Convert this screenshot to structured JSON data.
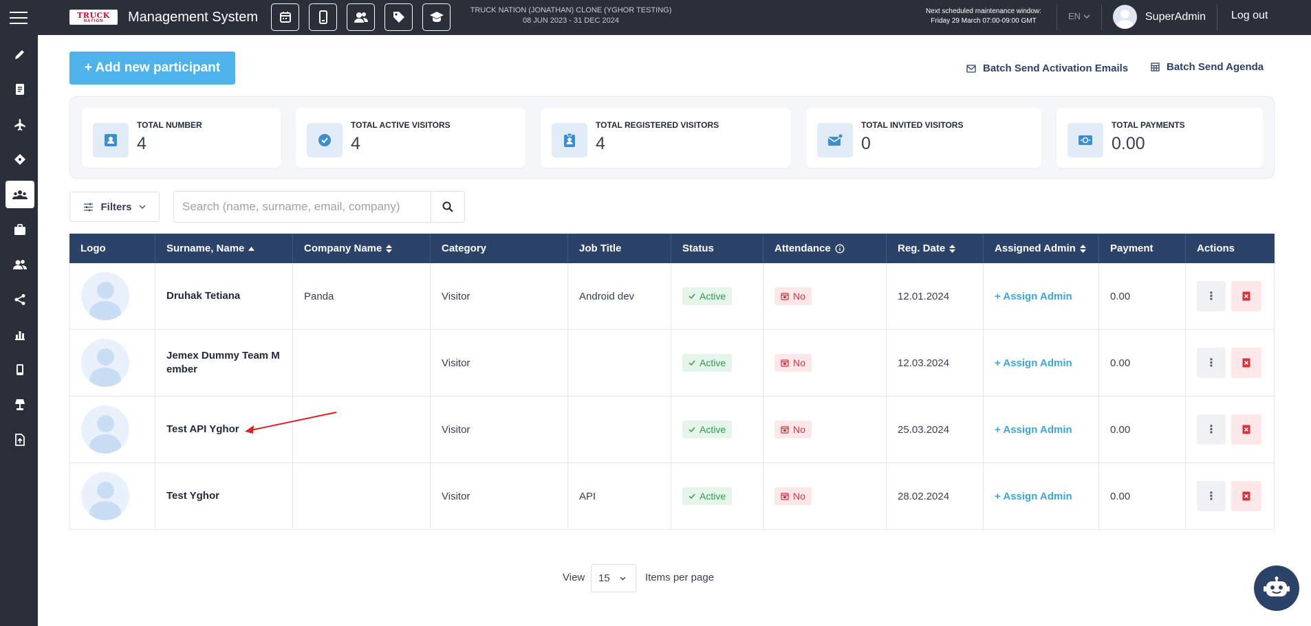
{
  "header": {
    "logo_line1": "TRUCK",
    "logo_line2": "NATION",
    "app_title": "Management System",
    "event_name": "TRUCK NATION (JONATHAN) CLONE (YGHOR TESTING)",
    "event_dates": "08 JUN 2023 - 31 DEC 2024",
    "maintenance_line1": "Next scheduled maintenance window:",
    "maintenance_line2": "Friday 29 March 07:00-09:00 GMT",
    "language": "EN",
    "username": "SuperAdmin",
    "logout": "Log out",
    "quick_icons": [
      "calendar-icon",
      "mobile-icon",
      "users-icon",
      "tag-icon",
      "graduation-cap-icon"
    ]
  },
  "sidebar": {
    "items": [
      "pencil-icon",
      "document-icon",
      "plane-icon",
      "ticket-icon",
      "participants-icon",
      "briefcase-icon",
      "users-icon",
      "share-icon",
      "bar-chart-icon",
      "mobile-icon",
      "lamp-icon",
      "file-upload-icon"
    ],
    "active_index": 4
  },
  "actions": {
    "add_participant": "+ Add new participant",
    "batch_activation": "Batch Send Activation Emails",
    "batch_agenda": "Batch Send Agenda"
  },
  "stats": [
    {
      "label": "TOTAL NUMBER",
      "value": "4",
      "icon": "id-card-icon"
    },
    {
      "label": "TOTAL ACTIVE VISITORS",
      "value": "4",
      "icon": "check-circle-icon"
    },
    {
      "label": "TOTAL REGISTERED VISITORS",
      "value": "4",
      "icon": "clipboard-user-icon"
    },
    {
      "label": "TOTAL INVITED VISITORS",
      "value": "0",
      "icon": "mail-icon"
    },
    {
      "label": "TOTAL PAYMENTS",
      "value": "0.00",
      "icon": "money-icon"
    }
  ],
  "toolbar": {
    "filters_label": "Filters",
    "search_placeholder": "Search (name, surname, email, company)"
  },
  "table": {
    "columns": [
      "Logo",
      "Surname, Name",
      "Company Name",
      "Category",
      "Job Title",
      "Status",
      "Attendance",
      "Reg. Date",
      "Assigned Admin",
      "Payment",
      "Actions"
    ],
    "rows": [
      {
        "name": "Druhak Tetiana",
        "company": "Panda",
        "category": "Visitor",
        "job_title": "Android dev",
        "status": "Active",
        "attendance": "No",
        "reg_date": "12.01.2024",
        "assigned_admin": "+ Assign Admin",
        "payment": "0.00"
      },
      {
        "name": "Jemex Dummy Team M ember",
        "company": "",
        "category": "Visitor",
        "job_title": "",
        "status": "Active",
        "attendance": "No",
        "reg_date": "12.03.2024",
        "assigned_admin": "+ Assign Admin",
        "payment": "0.00"
      },
      {
        "name": "Test API Yghor",
        "company": "",
        "category": "Visitor",
        "job_title": "",
        "status": "Active",
        "attendance": "No",
        "reg_date": "25.03.2024",
        "assigned_admin": "+ Assign Admin",
        "payment": "0.00"
      },
      {
        "name": "Test Yghor",
        "company": "",
        "category": "Visitor",
        "job_title": "API",
        "status": "Active",
        "attendance": "No",
        "reg_date": "28.02.2024",
        "assigned_admin": "+ Assign Admin",
        "payment": "0.00"
      }
    ]
  },
  "pagination": {
    "view_label": "View",
    "per_page": "15",
    "items_label": "Items per page"
  },
  "colors": {
    "topbar": "#2b2f3a",
    "table_header": "#2c4369",
    "primary_button": "#4db3ea",
    "active_status": "#2f9a55",
    "attendance_no": "#d9303d",
    "link": "#3aa6da"
  }
}
